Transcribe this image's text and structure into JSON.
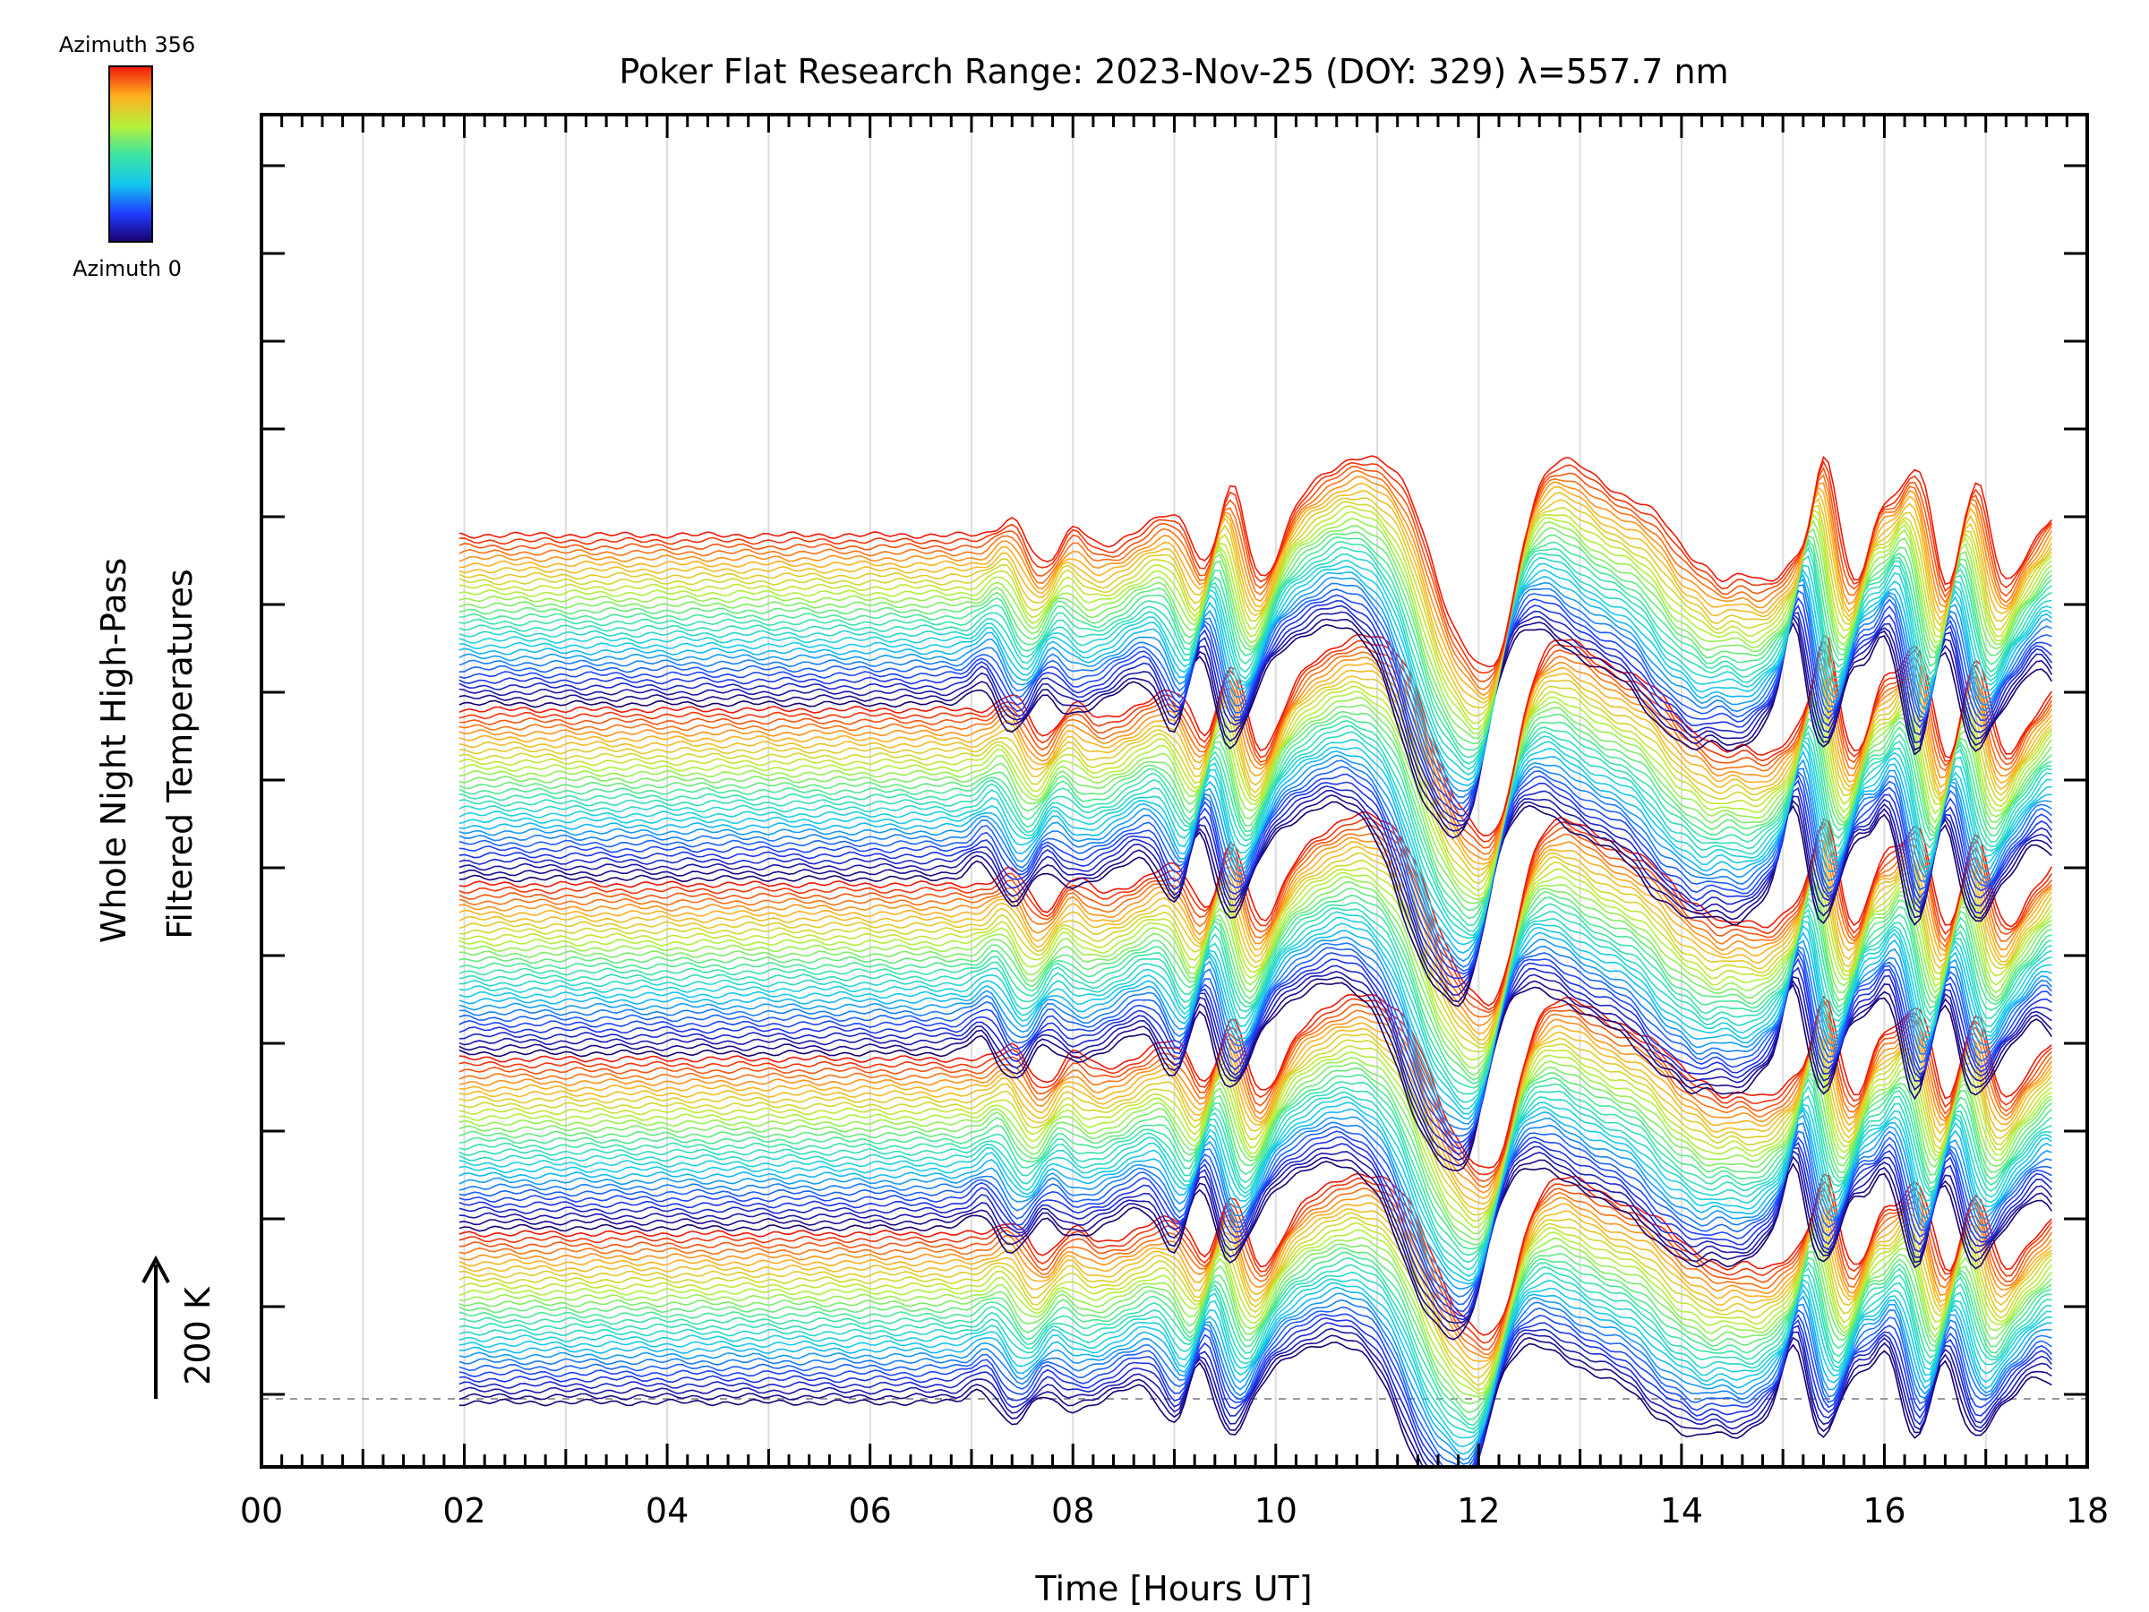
{
  "chart_data": {
    "type": "line",
    "title": "Poker Flat Research Range: 2023-Nov-25 (DOY: 329) λ=557.7 nm",
    "xlabel": "Time [Hours UT]",
    "ylabel_line1": "Whole Night High-Pass",
    "ylabel_line2": "Filtered Temperatures",
    "scale_label": "200 K",
    "scale_value_K": 200,
    "xlim": [
      0,
      18
    ],
    "x_ticks": [
      "00",
      "02",
      "04",
      "06",
      "08",
      "10",
      "12",
      "14",
      "16",
      "18"
    ],
    "x_tick_values": [
      0,
      2,
      4,
      6,
      8,
      10,
      12,
      14,
      16,
      18
    ],
    "data_time_range_hours_ut": [
      1.95,
      17.65
    ],
    "colorbar": {
      "top_label": "Azimuth 356",
      "bottom_label": "Azimuth 0",
      "azimuth_range": [
        0,
        356
      ],
      "colormap": "rainbow (blue to red)"
    },
    "series_groups": 5,
    "series_per_group": 30,
    "grid": "vertical lines each hour",
    "baseline": "dashed horizontal line at zero offset"
  }
}
